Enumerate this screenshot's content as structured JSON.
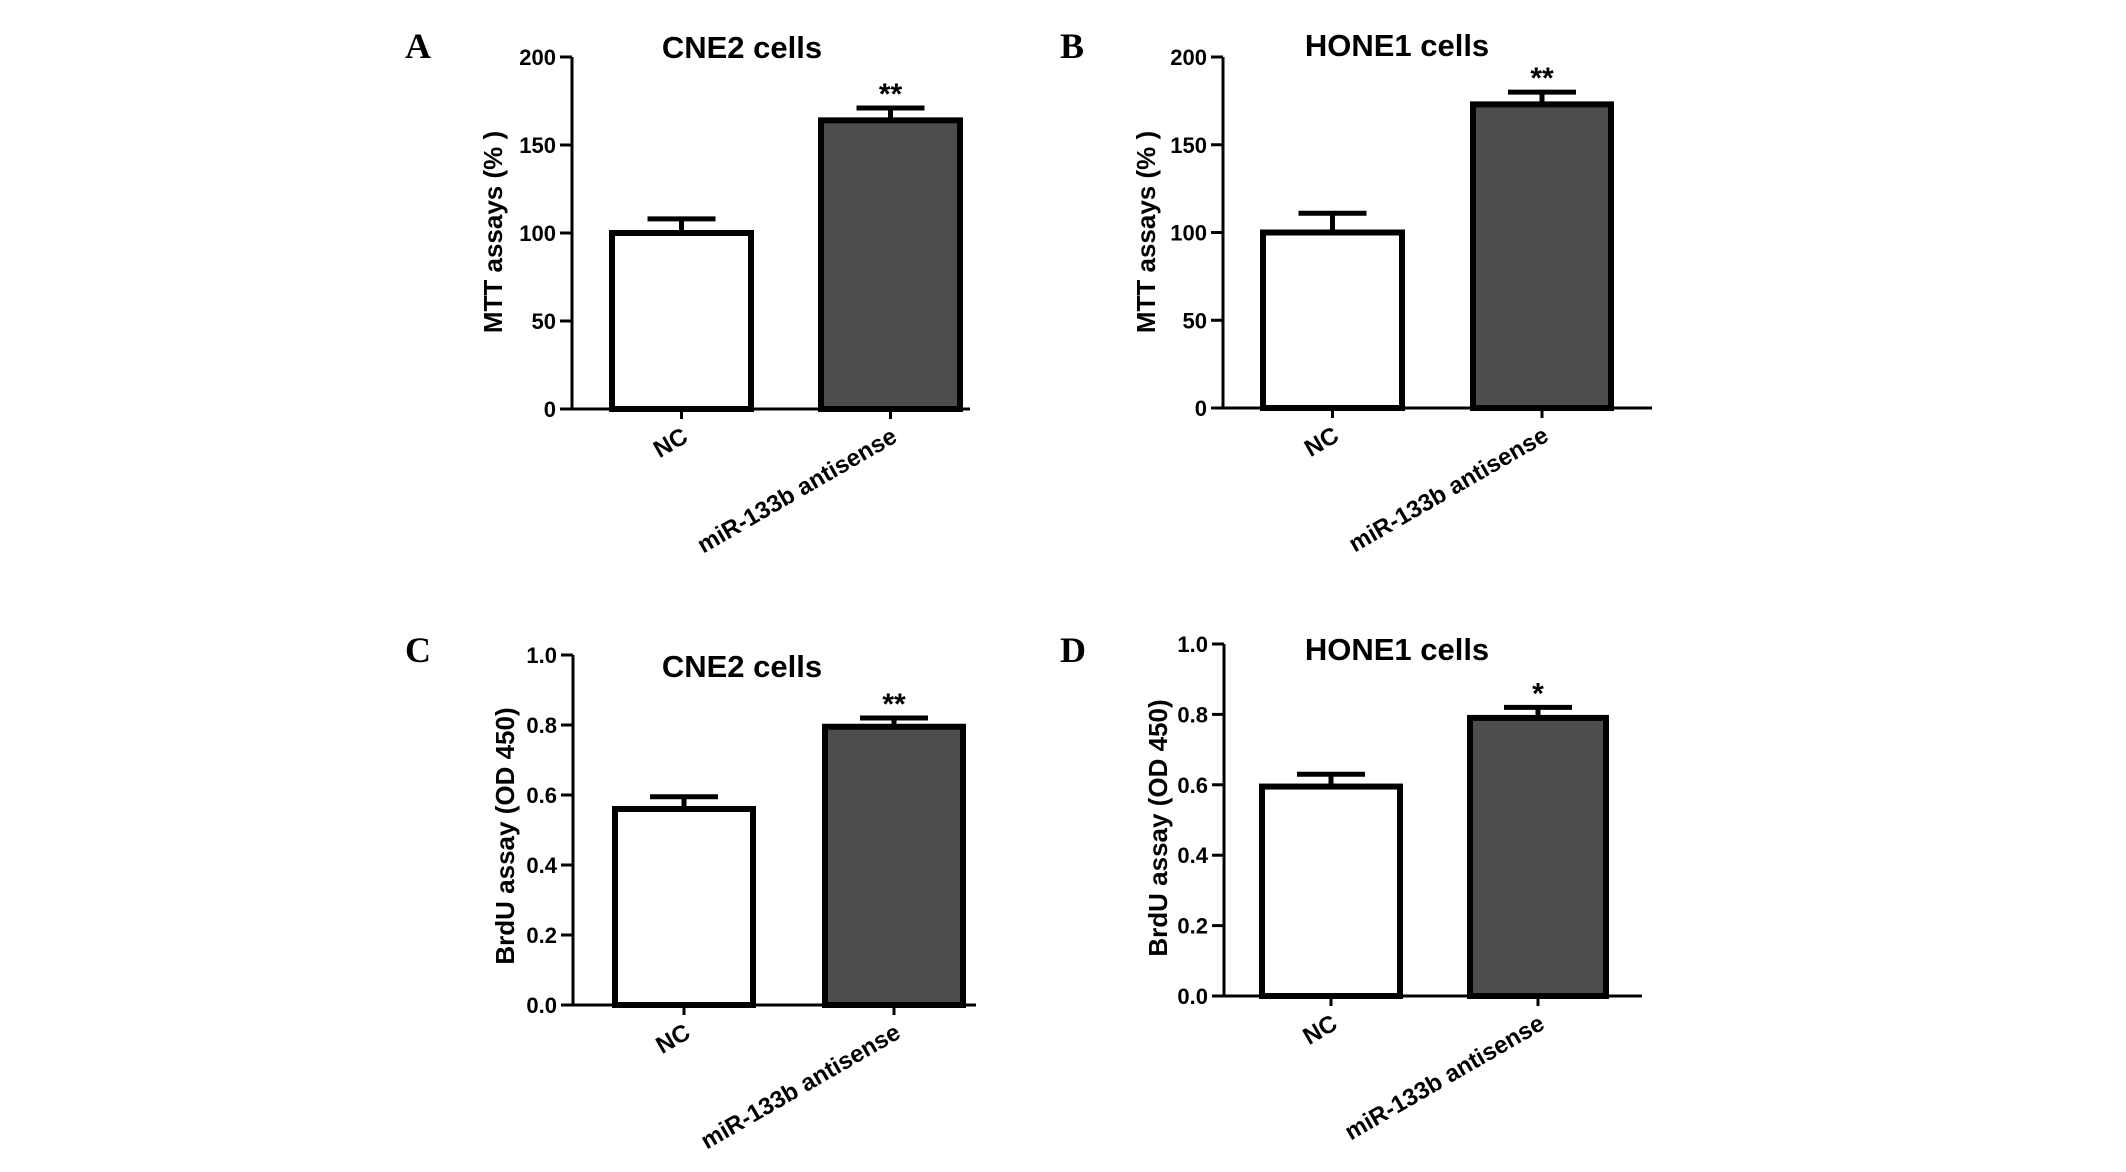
{
  "chart_data": [
    {
      "panel": "A",
      "type": "bar",
      "title": "CNE2 cells",
      "ylabel": "MTT assays (% )",
      "categories": [
        "NC",
        "miR-133b antisense"
      ],
      "values": [
        100,
        164
      ],
      "errors": [
        8,
        7
      ],
      "bar_colors": [
        "#ffffff",
        "#4d4d4d"
      ],
      "significance": [
        "",
        "**"
      ],
      "ylim": [
        0,
        200
      ],
      "yticks": [
        0,
        50,
        100,
        150,
        200
      ],
      "ytick_labels": [
        "0",
        "50",
        "100",
        "150",
        "200"
      ]
    },
    {
      "panel": "B",
      "type": "bar",
      "title": "HONE1 cells",
      "ylabel": "MTT assays (% )",
      "categories": [
        "NC",
        "miR-133b antisense"
      ],
      "values": [
        100,
        173
      ],
      "errors": [
        11,
        7
      ],
      "bar_colors": [
        "#ffffff",
        "#4d4d4d"
      ],
      "significance": [
        "",
        "**"
      ],
      "ylim": [
        0,
        200
      ],
      "yticks": [
        0,
        50,
        100,
        150,
        200
      ],
      "ytick_labels": [
        "0",
        "50",
        "100",
        "150",
        "200"
      ]
    },
    {
      "panel": "C",
      "type": "bar",
      "title": "CNE2 cells",
      "ylabel": "BrdU assay (OD 450)",
      "categories": [
        "NC",
        "miR-133b antisense"
      ],
      "values": [
        0.56,
        0.795
      ],
      "errors": [
        0.035,
        0.025
      ],
      "bar_colors": [
        "#ffffff",
        "#4d4d4d"
      ],
      "significance": [
        "",
        "**"
      ],
      "ylim": [
        0,
        1.0
      ],
      "yticks": [
        0,
        0.2,
        0.4,
        0.6,
        0.8,
        1.0
      ],
      "ytick_labels": [
        "0.0",
        "0.2",
        "0.4",
        "0.6",
        "0.8",
        "1.0"
      ]
    },
    {
      "panel": "D",
      "type": "bar",
      "title": "HONE1 cells",
      "ylabel": "BrdU assay (OD 450)",
      "categories": [
        "NC",
        "miR-133b antisense"
      ],
      "values": [
        0.595,
        0.79
      ],
      "errors": [
        0.035,
        0.03
      ],
      "bar_colors": [
        "#ffffff",
        "#4d4d4d"
      ],
      "significance": [
        "",
        "*"
      ],
      "ylim": [
        0,
        1.0
      ],
      "yticks": [
        0,
        0.2,
        0.4,
        0.6,
        0.8,
        1.0
      ],
      "ytick_labels": [
        "0.0",
        "0.2",
        "0.4",
        "0.6",
        "0.8",
        "1.0"
      ]
    }
  ]
}
